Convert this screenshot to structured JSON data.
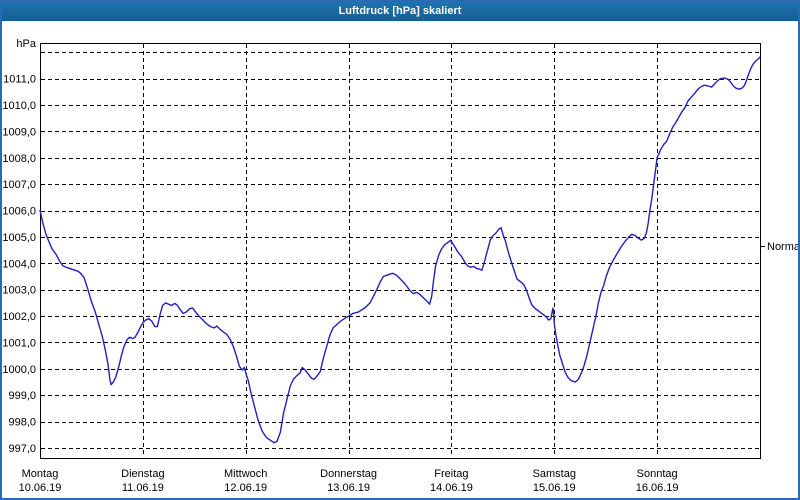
{
  "window": {
    "title": "Luftdruck [hPa] skaliert",
    "titlebar_bg": "#1a6ba3",
    "titlebar_text_color": "#ffffff",
    "frame_color": "#2b6ab3"
  },
  "chart_data": {
    "type": "line",
    "title": "Luftdruck [hPa] skaliert",
    "unit_label": "hPa",
    "grid": true,
    "legend_position": "none",
    "line_color": "#2121bb",
    "grid_color": "#000000",
    "ylim": [
      996.62,
      1012.35
    ],
    "y_gridlines": [
      997,
      998,
      999,
      1000,
      1001,
      1002,
      1003,
      1004,
      1005,
      1006,
      1007,
      1008,
      1009,
      1010,
      1011,
      1012
    ],
    "y_ticks": [
      {
        "value": 1011,
        "label": "1011,0"
      },
      {
        "value": 1010,
        "label": "1010,0"
      },
      {
        "value": 1009,
        "label": "1009,0"
      },
      {
        "value": 1008,
        "label": "1008,0"
      },
      {
        "value": 1007,
        "label": "1007,0"
      },
      {
        "value": 1006,
        "label": "1006,0"
      },
      {
        "value": 1005,
        "label": "1005,0"
      },
      {
        "value": 1004,
        "label": "1004,0"
      },
      {
        "value": 1003,
        "label": "1003,0"
      },
      {
        "value": 1002,
        "label": "1002,0"
      },
      {
        "value": 1001,
        "label": "1001,0"
      },
      {
        "value": 1000,
        "label": "1000,0"
      },
      {
        "value": 999,
        "label": "999,0"
      },
      {
        "value": 998,
        "label": "998,0"
      },
      {
        "value": 997,
        "label": "997,0"
      }
    ],
    "x_unit": "hours_from_monday_00",
    "x_hours_range": [
      0,
      168
    ],
    "x_days": [
      {
        "name": "Montag",
        "date": "10.06.19"
      },
      {
        "name": "Dienstag",
        "date": "11.06.19"
      },
      {
        "name": "Mittwoch",
        "date": "12.06.19"
      },
      {
        "name": "Donnerstag",
        "date": "13.06.19"
      },
      {
        "name": "Freitag",
        "date": "14.06.19"
      },
      {
        "name": "Samstag",
        "date": "15.06.19"
      },
      {
        "name": "Sonntag",
        "date": "16.06.19"
      }
    ],
    "normal_marker": {
      "label": "Normal",
      "value": 1004.65
    },
    "series": [
      {
        "name": "Luftdruck",
        "color": "#2121bb",
        "points": [
          [
            0,
            1006.0
          ],
          [
            0.7,
            1005.5
          ],
          [
            1.4,
            1005.1
          ],
          [
            1.9,
            1004.9
          ],
          [
            2.8,
            1004.55
          ],
          [
            3.7,
            1004.35
          ],
          [
            4.7,
            1004.05
          ],
          [
            5.4,
            1003.9
          ],
          [
            6.1,
            1003.85
          ],
          [
            7.0,
            1003.8
          ],
          [
            7.9,
            1003.75
          ],
          [
            8.9,
            1003.7
          ],
          [
            9.6,
            1003.6
          ],
          [
            10.3,
            1003.45
          ],
          [
            11.2,
            1003.0
          ],
          [
            11.9,
            1002.6
          ],
          [
            12.9,
            1002.15
          ],
          [
            13.6,
            1001.75
          ],
          [
            14.5,
            1001.25
          ],
          [
            15.2,
            1000.75
          ],
          [
            15.9,
            1000.15
          ],
          [
            16.3,
            999.6
          ],
          [
            16.6,
            999.4
          ],
          [
            17.1,
            999.5
          ],
          [
            17.7,
            999.7
          ],
          [
            18.4,
            1000.1
          ],
          [
            19.0,
            1000.5
          ],
          [
            19.6,
            1000.85
          ],
          [
            20.3,
            1001.1
          ],
          [
            20.9,
            1001.2
          ],
          [
            21.6,
            1001.15
          ],
          [
            22.2,
            1001.2
          ],
          [
            22.9,
            1001.4
          ],
          [
            23.5,
            1001.6
          ],
          [
            24.0,
            1001.75
          ],
          [
            24.7,
            1001.85
          ],
          [
            25.4,
            1001.9
          ],
          [
            26.1,
            1001.8
          ],
          [
            26.8,
            1001.6
          ],
          [
            27.4,
            1001.6
          ],
          [
            28.0,
            1002.05
          ],
          [
            28.6,
            1002.4
          ],
          [
            29.3,
            1002.5
          ],
          [
            30.0,
            1002.45
          ],
          [
            30.7,
            1002.4
          ],
          [
            31.4,
            1002.48
          ],
          [
            32.0,
            1002.42
          ],
          [
            32.7,
            1002.25
          ],
          [
            33.4,
            1002.1
          ],
          [
            34.1,
            1002.15
          ],
          [
            34.9,
            1002.28
          ],
          [
            35.6,
            1002.3
          ],
          [
            36.3,
            1002.15
          ],
          [
            37.1,
            1002.0
          ],
          [
            38.0,
            1001.85
          ],
          [
            38.9,
            1001.7
          ],
          [
            39.8,
            1001.6
          ],
          [
            40.6,
            1001.55
          ],
          [
            41.3,
            1001.62
          ],
          [
            42.0,
            1001.5
          ],
          [
            42.8,
            1001.4
          ],
          [
            43.6,
            1001.3
          ],
          [
            44.4,
            1001.1
          ],
          [
            45.1,
            1000.85
          ],
          [
            45.8,
            1000.5
          ],
          [
            46.5,
            1000.1
          ],
          [
            47.2,
            999.95
          ],
          [
            47.7,
            1000.05
          ],
          [
            48.0,
            999.85
          ],
          [
            48.6,
            999.55
          ],
          [
            49.2,
            999.1
          ],
          [
            50.0,
            998.6
          ],
          [
            50.9,
            998.05
          ],
          [
            51.8,
            997.65
          ],
          [
            52.8,
            997.4
          ],
          [
            53.7,
            997.3
          ],
          [
            54.6,
            997.2
          ],
          [
            55.3,
            997.25
          ],
          [
            56.1,
            997.6
          ],
          [
            56.8,
            998.3
          ],
          [
            57.7,
            998.9
          ],
          [
            58.4,
            999.35
          ],
          [
            59.1,
            999.6
          ],
          [
            60.0,
            999.75
          ],
          [
            60.7,
            999.85
          ],
          [
            61.2,
            1000.05
          ],
          [
            61.9,
            999.95
          ],
          [
            62.6,
            999.8
          ],
          [
            63.3,
            999.65
          ],
          [
            63.9,
            999.6
          ],
          [
            64.6,
            999.72
          ],
          [
            65.4,
            999.9
          ],
          [
            66.1,
            1000.4
          ],
          [
            67.0,
            1000.9
          ],
          [
            67.7,
            1001.3
          ],
          [
            68.4,
            1001.55
          ],
          [
            69.4,
            1001.7
          ],
          [
            70.1,
            1001.8
          ],
          [
            71.0,
            1001.9
          ],
          [
            72.0,
            1002.0
          ],
          [
            73.0,
            1002.1
          ],
          [
            74.3,
            1002.15
          ],
          [
            75.2,
            1002.25
          ],
          [
            76.1,
            1002.35
          ],
          [
            77.0,
            1002.5
          ],
          [
            77.8,
            1002.75
          ],
          [
            78.7,
            1003.05
          ],
          [
            79.4,
            1003.3
          ],
          [
            80.1,
            1003.5
          ],
          [
            81.0,
            1003.55
          ],
          [
            81.8,
            1003.6
          ],
          [
            82.3,
            1003.62
          ],
          [
            83.2,
            1003.55
          ],
          [
            84.1,
            1003.4
          ],
          [
            85.0,
            1003.25
          ],
          [
            85.7,
            1003.1
          ],
          [
            86.4,
            1002.95
          ],
          [
            87.1,
            1002.85
          ],
          [
            87.9,
            1002.9
          ],
          [
            88.8,
            1002.8
          ],
          [
            89.7,
            1002.65
          ],
          [
            90.4,
            1002.55
          ],
          [
            90.9,
            1002.45
          ],
          [
            91.4,
            1002.75
          ],
          [
            91.8,
            1003.3
          ],
          [
            92.3,
            1003.9
          ],
          [
            93.0,
            1004.3
          ],
          [
            93.7,
            1004.55
          ],
          [
            94.4,
            1004.7
          ],
          [
            95.1,
            1004.78
          ],
          [
            95.8,
            1004.87
          ],
          [
            96.0,
            1004.82
          ],
          [
            96.7,
            1004.65
          ],
          [
            97.4,
            1004.45
          ],
          [
            98.4,
            1004.25
          ],
          [
            99.1,
            1004.05
          ],
          [
            99.8,
            1003.9
          ],
          [
            100.5,
            1003.85
          ],
          [
            101.2,
            1003.88
          ],
          [
            101.9,
            1003.8
          ],
          [
            102.6,
            1003.78
          ],
          [
            103.1,
            1003.74
          ],
          [
            103.6,
            1004.0
          ],
          [
            104.1,
            1004.3
          ],
          [
            104.6,
            1004.6
          ],
          [
            105.1,
            1004.9
          ],
          [
            105.7,
            1005.05
          ],
          [
            106.4,
            1005.15
          ],
          [
            107.1,
            1005.3
          ],
          [
            107.6,
            1005.35
          ],
          [
            108.1,
            1005.05
          ],
          [
            108.6,
            1004.85
          ],
          [
            109.0,
            1004.6
          ],
          [
            109.4,
            1004.35
          ],
          [
            109.9,
            1004.1
          ],
          [
            110.4,
            1003.85
          ],
          [
            110.9,
            1003.6
          ],
          [
            111.3,
            1003.4
          ],
          [
            111.9,
            1003.33
          ],
          [
            112.4,
            1003.27
          ],
          [
            112.9,
            1003.18
          ],
          [
            113.4,
            1003.02
          ],
          [
            113.8,
            1002.85
          ],
          [
            114.3,
            1002.6
          ],
          [
            114.8,
            1002.42
          ],
          [
            115.4,
            1002.3
          ],
          [
            116.1,
            1002.22
          ],
          [
            116.8,
            1002.13
          ],
          [
            117.5,
            1002.05
          ],
          [
            118.2,
            1001.95
          ],
          [
            118.7,
            1001.85
          ],
          [
            119.2,
            1001.9
          ],
          [
            119.5,
            1002.15
          ],
          [
            119.7,
            1002.3
          ],
          [
            119.9,
            1002.0
          ],
          [
            120.0,
            1001.7
          ],
          [
            120.3,
            1001.35
          ],
          [
            120.8,
            1000.9
          ],
          [
            121.3,
            1000.5
          ],
          [
            121.9,
            1000.2
          ],
          [
            122.6,
            999.85
          ],
          [
            123.3,
            999.65
          ],
          [
            124.0,
            999.55
          ],
          [
            124.9,
            999.5
          ],
          [
            125.6,
            999.6
          ],
          [
            126.2,
            999.8
          ],
          [
            126.9,
            1000.1
          ],
          [
            127.6,
            1000.5
          ],
          [
            128.3,
            1001.0
          ],
          [
            129.0,
            1001.5
          ],
          [
            129.7,
            1002.0
          ],
          [
            130.3,
            1002.5
          ],
          [
            130.9,
            1002.9
          ],
          [
            131.5,
            1003.15
          ],
          [
            132.2,
            1003.55
          ],
          [
            132.9,
            1003.85
          ],
          [
            133.7,
            1004.1
          ],
          [
            134.4,
            1004.3
          ],
          [
            135.5,
            1004.6
          ],
          [
            136.6,
            1004.85
          ],
          [
            137.4,
            1005.0
          ],
          [
            138.1,
            1005.1
          ],
          [
            138.9,
            1005.05
          ],
          [
            139.6,
            1004.95
          ],
          [
            140.3,
            1004.88
          ],
          [
            141.0,
            1004.95
          ],
          [
            141.5,
            1005.15
          ],
          [
            141.9,
            1005.5
          ],
          [
            142.3,
            1006.0
          ],
          [
            142.8,
            1006.5
          ],
          [
            143.2,
            1007.0
          ],
          [
            143.6,
            1007.5
          ],
          [
            144.0,
            1008.0
          ],
          [
            144.8,
            1008.3
          ],
          [
            145.5,
            1008.5
          ],
          [
            146.2,
            1008.62
          ],
          [
            146.9,
            1008.9
          ],
          [
            147.6,
            1009.15
          ],
          [
            148.4,
            1009.35
          ],
          [
            149.1,
            1009.55
          ],
          [
            149.8,
            1009.75
          ],
          [
            150.5,
            1009.9
          ],
          [
            151.2,
            1010.15
          ],
          [
            152.0,
            1010.3
          ],
          [
            152.8,
            1010.45
          ],
          [
            153.5,
            1010.6
          ],
          [
            154.3,
            1010.7
          ],
          [
            155.1,
            1010.75
          ],
          [
            155.9,
            1010.72
          ],
          [
            156.7,
            1010.68
          ],
          [
            157.4,
            1010.8
          ],
          [
            158.1,
            1010.92
          ],
          [
            158.8,
            1011.0
          ],
          [
            159.8,
            1011.02
          ],
          [
            160.6,
            1010.97
          ],
          [
            161.2,
            1010.85
          ],
          [
            161.8,
            1010.72
          ],
          [
            162.5,
            1010.63
          ],
          [
            163.2,
            1010.6
          ],
          [
            163.9,
            1010.65
          ],
          [
            164.4,
            1010.75
          ],
          [
            164.9,
            1010.95
          ],
          [
            165.4,
            1011.2
          ],
          [
            165.9,
            1011.4
          ],
          [
            166.4,
            1011.55
          ],
          [
            166.9,
            1011.65
          ],
          [
            167.4,
            1011.72
          ],
          [
            167.8,
            1011.78
          ],
          [
            168.0,
            1011.82
          ]
        ]
      }
    ]
  }
}
